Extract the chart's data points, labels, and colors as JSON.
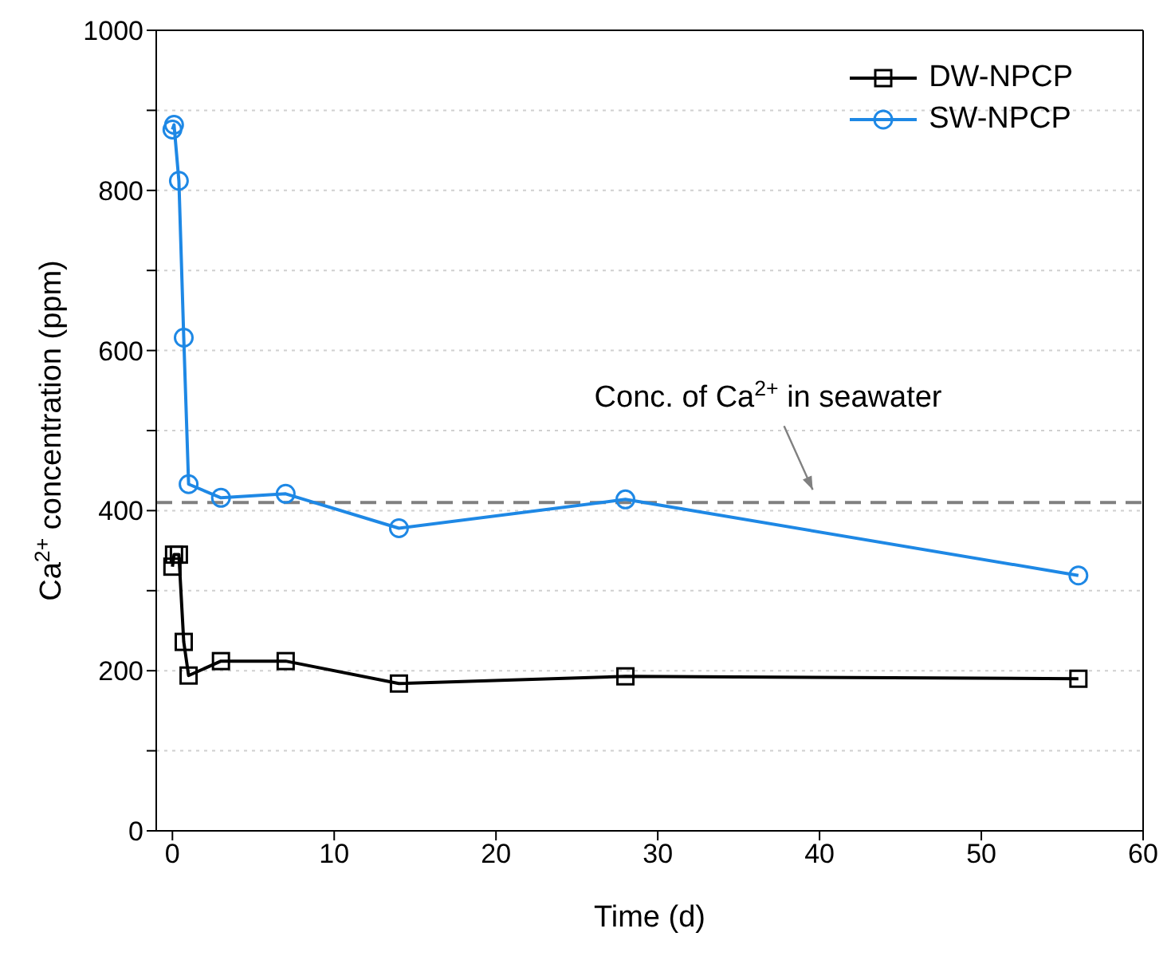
{
  "chart_data": {
    "type": "line",
    "xlabel": "Time (d)",
    "ylabel": "Ca$^{2+}$ concentration (ppm)",
    "x": [
      0,
      0.1,
      0.4,
      0.7,
      1,
      3,
      7,
      14,
      28,
      56
    ],
    "series": [
      {
        "name": "DW-NPCP",
        "color": "#000000",
        "marker": "square",
        "values": [
          330,
          345,
          345,
          236,
          194,
          212,
          212,
          184,
          193,
          190
        ]
      },
      {
        "name": "SW-NPCP",
        "color": "#1e88e5",
        "marker": "circle",
        "values": [
          876,
          882,
          812,
          616,
          433,
          416,
          421,
          378,
          414,
          319
        ]
      }
    ],
    "xlim": [
      -1,
      60
    ],
    "xticks": [
      0,
      10,
      20,
      30,
      40,
      50,
      60
    ],
    "ylim": [
      0,
      1000
    ],
    "yticks": [
      0,
      {
        "value": 100,
        "label": null
      },
      200,
      {
        "value": 300,
        "label": null
      },
      400,
      {
        "value": 500,
        "label": null
      },
      600,
      {
        "value": 700,
        "label": null
      },
      800,
      {
        "value": 900,
        "label": null
      },
      1000
    ],
    "ref_lines": [
      {
        "axis": "y",
        "value": 410,
        "label": "Conc. of Ca$^{2+}$ in seawater",
        "color": "#808080",
        "line_style": "dashed"
      }
    ],
    "grid": "y",
    "legend": "top right",
    "line_style": "solid"
  }
}
